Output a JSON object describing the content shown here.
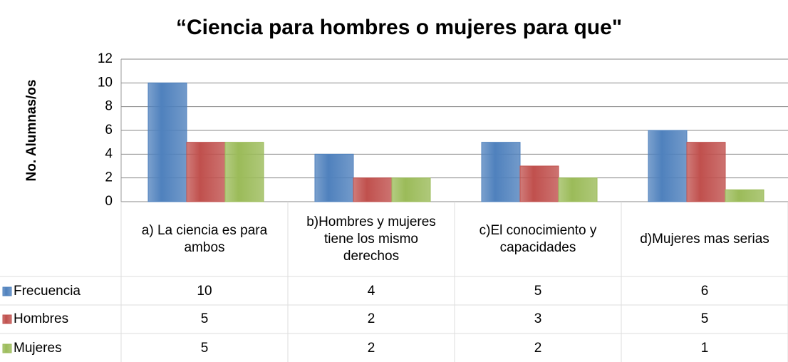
{
  "chart_data": {
    "type": "bar",
    "title": "“Ciencia para hombres o mujeres para que\"",
    "y_label": "No. Alumnas/os",
    "categories": [
      "a) La ciencia es para ambos",
      "b)Hombres y mujeres tiene los mismo derechos",
      "c)El conocimiento y capacidades",
      "d)Mujeres mas serias"
    ],
    "series": [
      {
        "name": "Frecuencia",
        "color": "#4f81bd",
        "values": [
          10,
          4,
          5,
          6
        ]
      },
      {
        "name": "Hombres",
        "color": "#c0504d",
        "values": [
          5,
          2,
          3,
          5
        ]
      },
      {
        "name": "Mujeres",
        "color": "#9bbb59",
        "values": [
          5,
          2,
          2,
          1
        ]
      }
    ],
    "ylim": [
      0,
      12
    ],
    "yticks": [
      0,
      2,
      4,
      6,
      8,
      10,
      12
    ],
    "grid": true,
    "data_table": true
  }
}
